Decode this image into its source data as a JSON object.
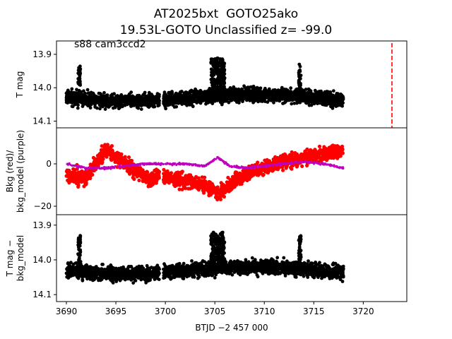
{
  "title_line1": "AT2025bxt  GOTO25ako",
  "title_line2": "19.53L-GOTO Unclassified z= -99.0",
  "annotation": "s88 cam3ccd2",
  "colors": {
    "data": "#000000",
    "bkg": "#ff0000",
    "bkg_model": "#bf00bf",
    "marker_line": "#ff0000"
  },
  "chart_data": [
    {
      "type": "scatter",
      "panel": "top",
      "ylabel": "T mag",
      "ylim": [
        14.12,
        13.86
      ],
      "yticks": [
        13.9,
        14.0,
        14.1
      ],
      "ytick_labels": [
        "13.9",
        "14.0",
        "14.1"
      ],
      "x_range": [
        3690.0,
        3718.0
      ],
      "base_mag": 14.03,
      "scatter": 0.025,
      "features": [
        {
          "x": 3691.3,
          "y": 13.93,
          "note": "spike"
        },
        {
          "x": 3705.3,
          "y": 13.91,
          "note": "bump"
        },
        {
          "x": 3713.6,
          "y": 13.92,
          "note": "spike"
        }
      ],
      "vertical_line": {
        "x": 3722.9,
        "style": "dashed"
      }
    },
    {
      "type": "scatter",
      "panel": "middle",
      "ylabel": "Bkg (red)/\nbkg_model (purple)",
      "ylim": [
        -24,
        17
      ],
      "yticks": [
        -20,
        0
      ],
      "ytick_labels": [
        "−20",
        "0"
      ],
      "series": [
        {
          "name": "red",
          "x": [
            3690,
            3692,
            3694,
            3696,
            3698,
            3700,
            3702,
            3704,
            3705.5,
            3707,
            3709,
            3711,
            3713,
            3715,
            3718
          ],
          "y": [
            -5,
            -7,
            7,
            0,
            -7,
            -6,
            -8,
            -10,
            -14,
            -8,
            -3,
            0,
            2,
            4,
            6
          ]
        },
        {
          "name": "purple",
          "x": [
            3690,
            3692,
            3694,
            3696,
            3698,
            3700,
            3702,
            3704,
            3705.3,
            3706.5,
            3708,
            3710,
            3712,
            3714,
            3716,
            3718
          ],
          "y": [
            0,
            -2,
            -2,
            -1,
            0,
            0,
            0,
            -1,
            3,
            -1,
            -2,
            -1,
            0,
            1,
            0,
            -2
          ]
        }
      ]
    },
    {
      "type": "scatter",
      "panel": "bottom",
      "ylabel": "T mag −\nbkg_model",
      "ylim": [
        14.12,
        13.87
      ],
      "yticks": [
        13.9,
        14.0,
        14.1
      ],
      "ytick_labels": [
        "13.9",
        "14.0",
        "14.1"
      ],
      "xlabel": "BTJD −2 457 000",
      "xlim": [
        3689.0,
        3724.4
      ],
      "xticks": [
        3690,
        3695,
        3700,
        3705,
        3710,
        3715,
        3720
      ],
      "xtick_labels": [
        "3690",
        "3695",
        "3700",
        "3705",
        "3710",
        "3715",
        "3720"
      ],
      "base_mag": 14.03,
      "scatter": 0.025,
      "features": [
        {
          "x": 3691.3,
          "y": 13.93,
          "note": "spike"
        },
        {
          "x": 3705.3,
          "y": 13.92,
          "note": "bump"
        },
        {
          "x": 3713.6,
          "y": 13.93,
          "note": "spike"
        }
      ]
    }
  ]
}
